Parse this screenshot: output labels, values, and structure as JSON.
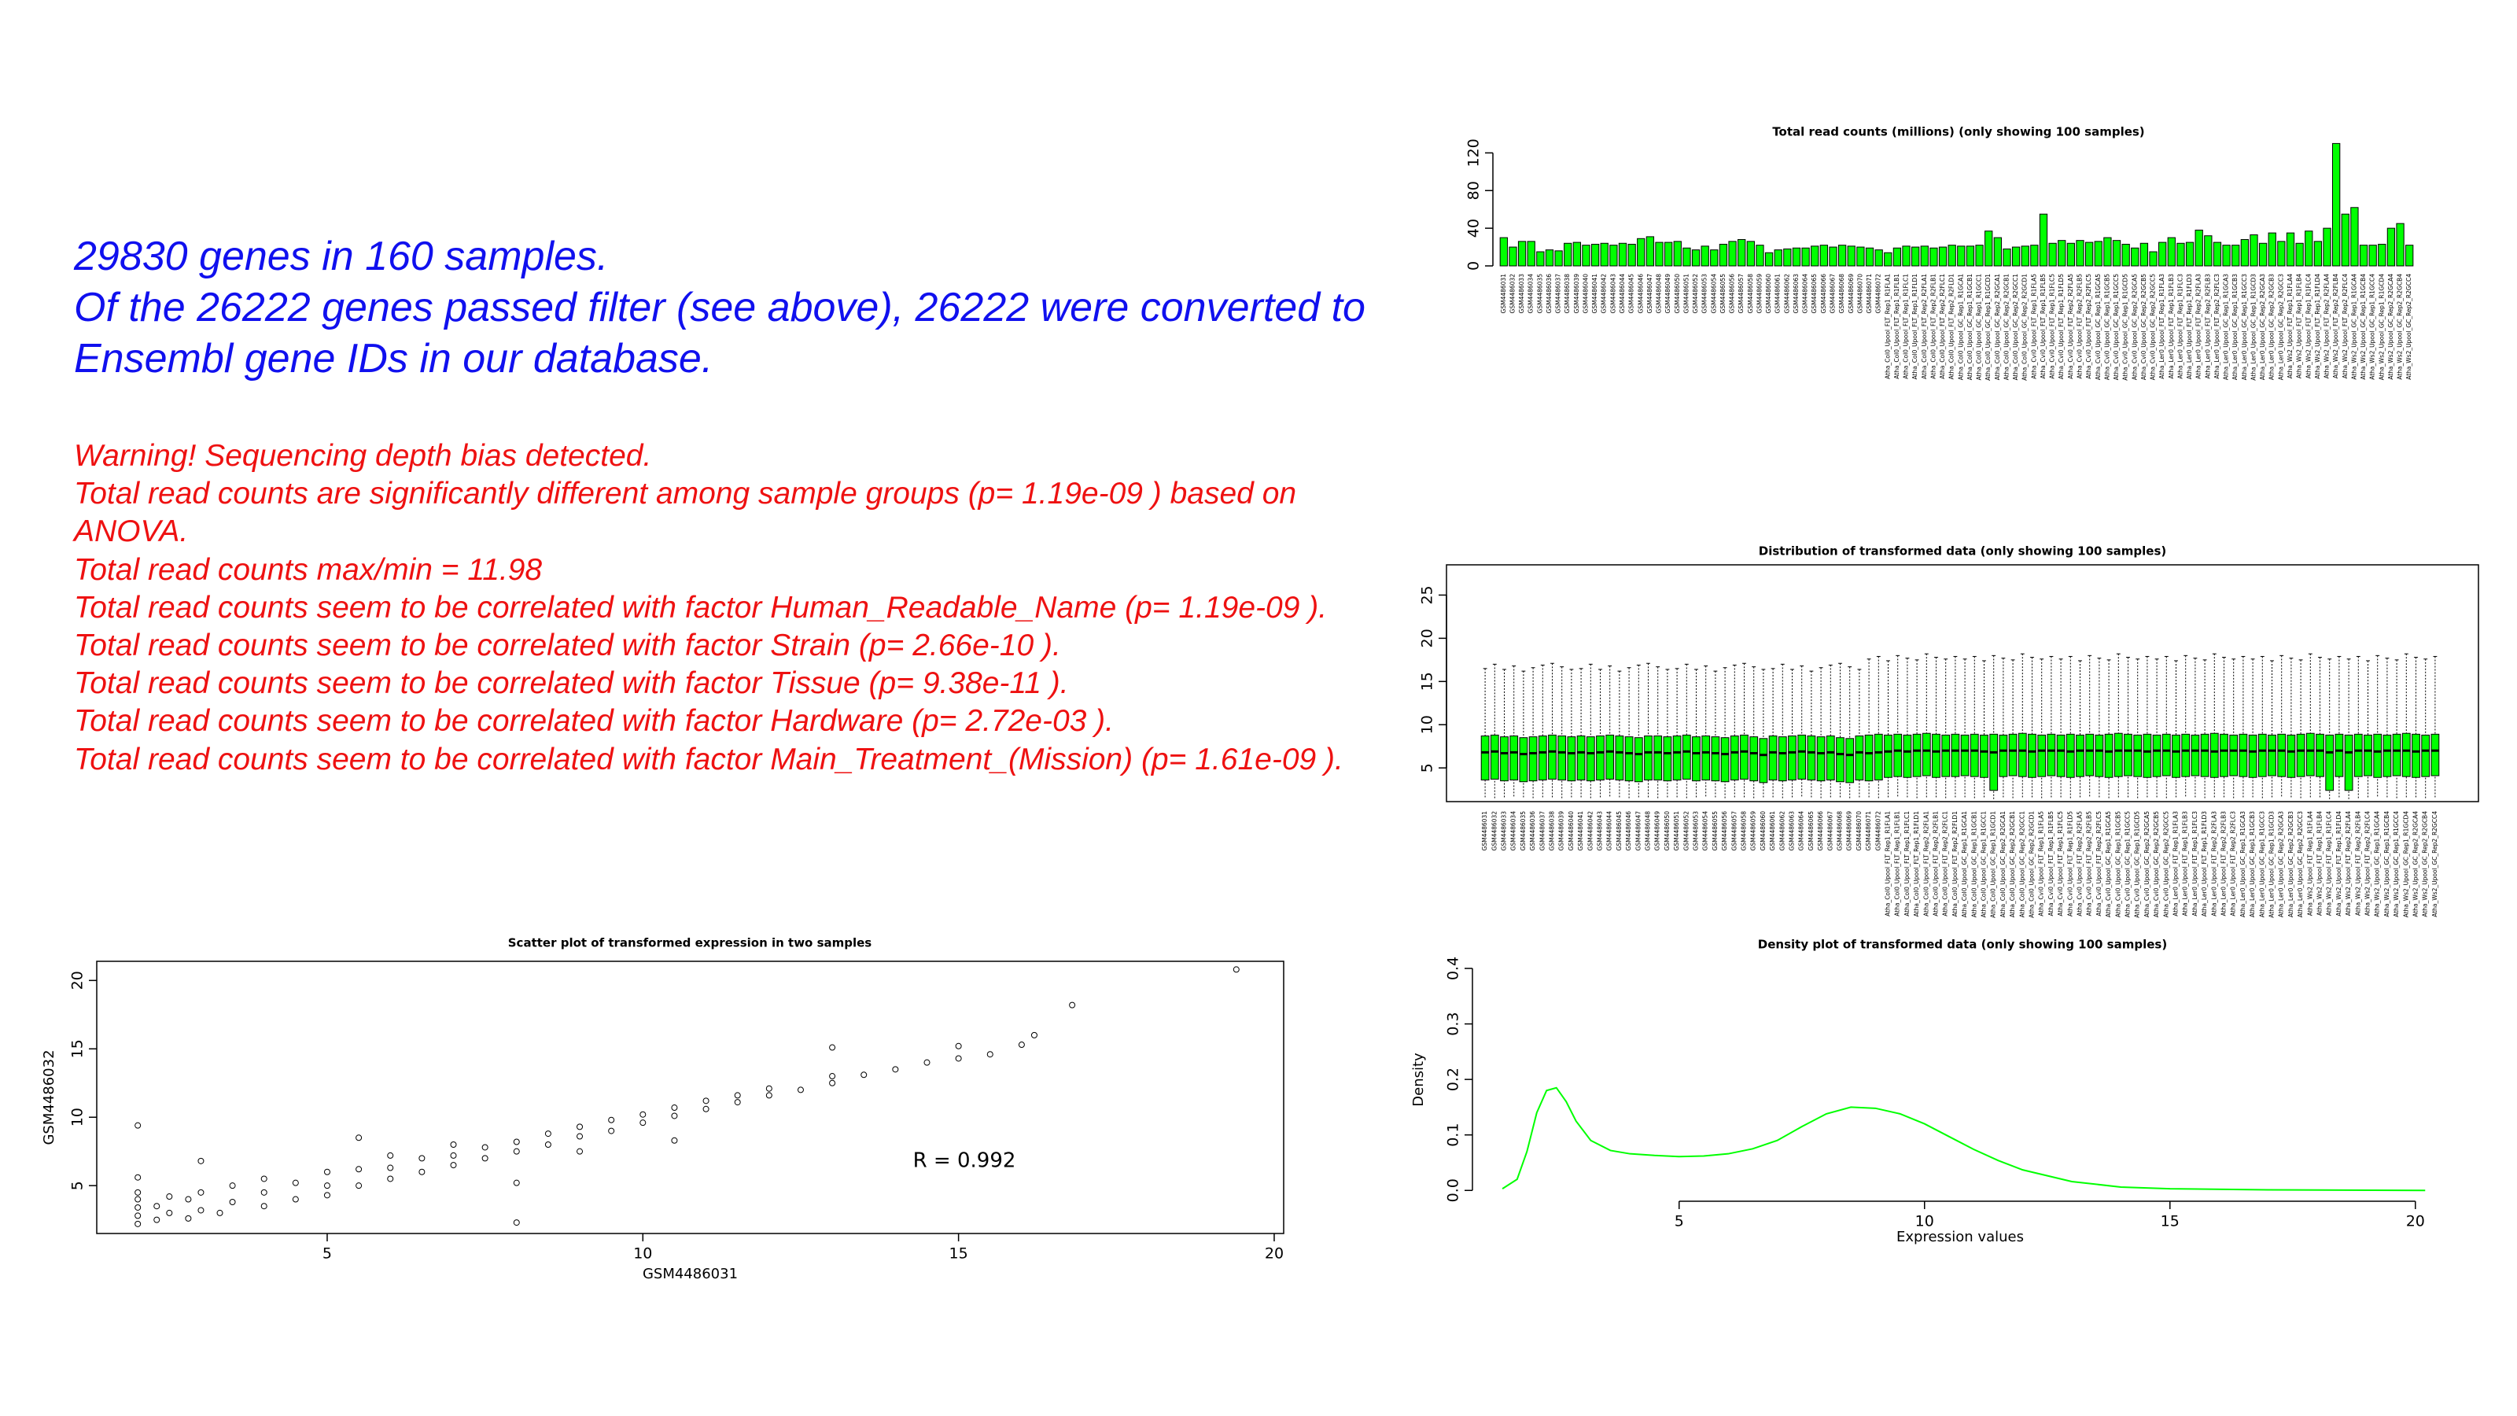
{
  "header": {
    "lines": [
      "29830 genes in 160 samples.",
      "Of the 26222 genes passed filter (see above), 26222 were converted to",
      "Ensembl gene IDs in our database."
    ]
  },
  "warnings": [
    "Warning! Sequencing depth bias detected.",
    "Total read counts are significantly different among sample groups (p= 1.19e-09 ) based on",
    "ANOVA.",
    "Total read counts max/min = 11.98",
    "Total read counts seem to be correlated with factor Human_Readable_Name (p= 1.19e-09 ).",
    "Total read counts seem to be correlated with factor Strain (p= 2.66e-10 ).",
    "Total read counts seem to be correlated with factor Tissue (p= 9.38e-11 ).",
    "Total read counts seem to be correlated with factor Hardware (p= 2.72e-03 ).",
    "Total read counts seem to be correlated with factor Main_Treatment_(Mission) (p= 1.61e-09 )."
  ],
  "chart_data": [
    {
      "type": "bar",
      "title": "Total read counts (millions)  (only showing 100 samples)",
      "color": "#00ff00",
      "categories": [
        "GSM4486031",
        "GSM4486032",
        "GSM4486033",
        "GSM4486034",
        "GSM4486035",
        "GSM4486036",
        "GSM4486037",
        "GSM4486038",
        "GSM4486039",
        "GSM4486040",
        "GSM4486041",
        "GSM4486042",
        "GSM4486043",
        "GSM4486044",
        "GSM4486045",
        "GSM4486046",
        "GSM4486047",
        "GSM4486048",
        "GSM4486049",
        "GSM4486050",
        "GSM4486051",
        "GSM4486052",
        "GSM4486053",
        "GSM4486054",
        "GSM4486055",
        "GSM4486056",
        "GSM4486057",
        "GSM4486058",
        "GSM4486059",
        "GSM4486060",
        "GSM4486061",
        "GSM4486062",
        "GSM4486063",
        "GSM4486064",
        "GSM4486065",
        "GSM4486066",
        "GSM4486067",
        "GSM4486068",
        "GSM4486069",
        "GSM4486070",
        "GSM4486071",
        "GSM4486072",
        "Atha_Col0_Upool_FLT_Rep1_R1FLA1",
        "Atha_Col0_Upool_FLT_Rep1_R1FLB1",
        "Atha_Col0_Upool_FLT_Rep1_R1FLC1",
        "Atha_Col0_Upool_FLT_Rep1_R1FLD1",
        "Atha_Col0_Upool_FLT_Rep2_R2FLA1",
        "Atha_Col0_Upool_FLT_Rep2_R2FLB1",
        "Atha_Col0_Upool_FLT_Rep2_R2FLC1",
        "Atha_Col0_Upool_FLT_Rep2_R2FLD1",
        "Atha_Col0_Upool_GC_Rep1_R1GCA1",
        "Atha_Col0_Upool_GC_Rep1_R1GCB1",
        "Atha_Col0_Upool_GC_Rep1_R1GCC1",
        "Atha_Col0_Upool_GC_Rep1_R1GCD1",
        "Atha_Col0_Upool_GC_Rep2_R2GCA1",
        "Atha_Col0_Upool_GC_Rep2_R2GCB1",
        "Atha_Col0_Upool_GC_Rep2_R2GCC1",
        "Atha_Col0_Upool_GC_Rep2_R2GCD1",
        "Atha_Cvi0_Upool_FLT_Rep1_R1FLA5",
        "Atha_Cvi0_Upool_FLT_Rep1_R1FLB5",
        "Atha_Cvi0_Upool_FLT_Rep1_R1FLC5",
        "Atha_Cvi0_Upool_FLT_Rep1_R1FLD5",
        "Atha_Cvi0_Upool_FLT_Rep2_R2FLA5",
        "Atha_Cvi0_Upool_FLT_Rep2_R2FLB5",
        "Atha_Cvi0_Upool_FLT_Rep2_R2FLC5",
        "Atha_Cvi0_Upool_GC_Rep1_R1GCA5",
        "Atha_Cvi0_Upool_GC_Rep1_R1GCB5",
        "Atha_Cvi0_Upool_GC_Rep1_R1GCC5",
        "Atha_Cvi0_Upool_GC_Rep1_R1GCD5",
        "Atha_Cvi0_Upool_GC_Rep2_R2GCA5",
        "Atha_Cvi0_Upool_GC_Rep2_R2GCB5",
        "Atha_Cvi0_Upool_GC_Rep2_R2GCC5",
        "Atha_Ler0_Upool_FLT_Rep1_R1FLA3",
        "Atha_Ler0_Upool_FLT_Rep1_R1FLB3",
        "Atha_Ler0_Upool_FLT_Rep1_R1FLC3",
        "Atha_Ler0_Upool_FLT_Rep1_R1FLD3",
        "Atha_Ler0_Upool_FLT_Rep2_R2FLA3",
        "Atha_Ler0_Upool_FLT_Rep2_R2FLB3",
        "Atha_Ler0_Upool_FLT_Rep2_R2FLC3",
        "Atha_Ler0_Upool_GC_Rep1_R1GCA3",
        "Atha_Ler0_Upool_GC_Rep1_R1GCB3",
        "Atha_Ler0_Upool_GC_Rep1_R1GCC3",
        "Atha_Ler0_Upool_GC_Rep1_R1GCD3",
        "Atha_Ler0_Upool_GC_Rep2_R2GCA3",
        "Atha_Ler0_Upool_GC_Rep2_R2GCB3",
        "Atha_Ler0_Upool_GC_Rep2_R2GCC3",
        "Atha_Ws2_Upool_FLT_Rep1_R1FLA4",
        "Atha_Ws2_Upool_FLT_Rep1_R1FLB4",
        "Atha_Ws2_Upool_FLT_Rep1_R1FLC4",
        "Atha_Ws2_Upool_FLT_Rep1_R1FLD4",
        "Atha_Ws2_Upool_FLT_Rep2_R2FLA4",
        "Atha_Ws2_Upool_FLT_Rep2_R2FLB4",
        "Atha_Ws2_Upool_FLT_Rep2_R2FLC4",
        "Atha_Ws2_Upool_GC_Rep1_R1GCA4",
        "Atha_Ws2_Upool_GC_Rep1_R1GCB4",
        "Atha_Ws2_Upool_GC_Rep1_R1GCC4",
        "Atha_Ws2_Upool_GC_Rep1_R1GCD4",
        "Atha_Ws2_Upool_GC_Rep2_R2GCA4",
        "Atha_Ws2_Upool_GC_Rep2_R2GCB4",
        "Atha_Ws2_Upool_GC_Rep2_R2GCC4"
      ],
      "values": [
        30,
        20,
        26,
        26,
        15,
        17,
        16,
        24,
        25,
        22,
        23,
        24,
        22,
        24,
        23,
        29,
        31,
        25,
        25,
        26,
        19,
        17,
        21,
        17,
        23,
        26,
        28,
        26,
        22,
        14,
        17,
        18,
        19,
        19,
        21,
        22,
        20,
        22,
        21,
        20,
        19,
        17,
        14,
        19,
        21,
        20,
        21,
        19,
        20,
        22,
        21,
        21,
        22,
        37,
        30,
        18,
        20,
        21,
        22,
        55,
        24,
        27,
        24,
        27,
        25,
        26,
        30,
        27,
        23,
        19,
        24,
        15,
        25,
        30,
        24,
        25,
        38,
        32,
        25,
        22,
        22,
        28,
        33,
        24,
        35,
        26,
        35,
        24,
        37,
        26,
        40,
        130,
        55,
        62,
        22,
        22,
        23,
        40,
        45,
        22
      ],
      "ylim": [
        0,
        132
      ],
      "yticks": [
        0,
        40,
        80,
        120
      ]
    },
    {
      "type": "box",
      "title": "Distribution of transformed data (only showing 100 samples)",
      "color": "#00ff00",
      "whisker_low": [
        1.6,
        1.5,
        1.6,
        1.7,
        1.6,
        1.5,
        1.6,
        1.6,
        1.5,
        1.6,
        1.6,
        1.5,
        1.6,
        1.7,
        1.6,
        1.5,
        1.6,
        1.6,
        1.5,
        1.6,
        1.6,
        1.5,
        1.6,
        1.7,
        1.6,
        1.5,
        1.6,
        1.6,
        1.5,
        1.6,
        1.6,
        1.5,
        1.6,
        1.7,
        1.6,
        1.5,
        1.6,
        1.6,
        1.5,
        1.6,
        1.6,
        1.5,
        1.6,
        1.7,
        1.6,
        1.5,
        1.6,
        1.6,
        1.5,
        1.6,
        1.6,
        1.5,
        1.6,
        1.4,
        1.6,
        1.5,
        1.6,
        1.6,
        1.5,
        1.6,
        1.6,
        1.5,
        1.6,
        1.7,
        1.6,
        1.5,
        1.6,
        1.6,
        1.5,
        1.6,
        1.6,
        1.5,
        1.6,
        1.7,
        1.6,
        1.5,
        1.6,
        1.6,
        1.5,
        1.6,
        1.6,
        1.5,
        1.6,
        1.7,
        1.6,
        1.5,
        1.6,
        1.6,
        1.4,
        1.6,
        1.4,
        1.5,
        1.6,
        1.7,
        1.6,
        1.5,
        1.6,
        1.6,
        1.5,
        1.6
      ],
      "q1": [
        3.6,
        3.7,
        3.5,
        3.6,
        3.4,
        3.5,
        3.6,
        3.7,
        3.6,
        3.5,
        3.6,
        3.5,
        3.6,
        3.7,
        3.6,
        3.5,
        3.4,
        3.6,
        3.6,
        3.5,
        3.6,
        3.7,
        3.5,
        3.6,
        3.5,
        3.4,
        3.6,
        3.7,
        3.5,
        3.3,
        3.6,
        3.5,
        3.6,
        3.7,
        3.6,
        3.5,
        3.6,
        3.4,
        3.3,
        3.6,
        3.5,
        3.6,
        3.9,
        4.0,
        3.9,
        4.0,
        4.1,
        3.9,
        4.0,
        4.0,
        4.1,
        4.0,
        3.9,
        2.4,
        4.0,
        4.1,
        4.0,
        3.9,
        4.0,
        4.1,
        4.0,
        3.9,
        4.0,
        4.1,
        4.0,
        3.9,
        4.0,
        4.1,
        4.0,
        3.9,
        4.0,
        4.1,
        3.9,
        4.0,
        4.1,
        4.0,
        3.9,
        4.0,
        4.1,
        4.0,
        3.9,
        4.0,
        4.1,
        4.0,
        3.9,
        4.0,
        4.1,
        4.0,
        2.4,
        4.0,
        2.4,
        4.0,
        4.1,
        3.9,
        4.0,
        4.1,
        4.0,
        3.9,
        4.0,
        4.1
      ],
      "median": [
        6.8,
        6.9,
        6.7,
        6.8,
        6.6,
        6.7,
        6.8,
        6.9,
        6.8,
        6.7,
        6.8,
        6.7,
        6.8,
        6.9,
        6.8,
        6.7,
        6.6,
        6.8,
        6.8,
        6.7,
        6.8,
        6.9,
        6.7,
        6.8,
        6.7,
        6.6,
        6.8,
        6.9,
        6.7,
        6.5,
        6.8,
        6.7,
        6.8,
        6.9,
        6.8,
        6.7,
        6.8,
        6.6,
        6.5,
        6.8,
        6.7,
        6.8,
        6.9,
        7.0,
        6.9,
        7.0,
        7.0,
        6.9,
        7.0,
        7.0,
        7.0,
        7.0,
        6.9,
        6.8,
        7.0,
        7.0,
        7.0,
        6.9,
        7.0,
        7.0,
        7.0,
        6.9,
        7.0,
        7.0,
        7.0,
        6.9,
        7.0,
        7.0,
        7.0,
        6.9,
        7.0,
        7.0,
        6.9,
        7.0,
        7.0,
        7.0,
        6.9,
        7.0,
        7.0,
        7.0,
        6.9,
        7.0,
        7.0,
        7.0,
        6.9,
        7.0,
        7.0,
        7.0,
        6.8,
        7.0,
        6.8,
        7.0,
        7.0,
        6.9,
        7.0,
        7.0,
        7.0,
        6.9,
        7.0,
        7.0
      ],
      "q3": [
        8.7,
        8.8,
        8.6,
        8.7,
        8.5,
        8.6,
        8.7,
        8.8,
        8.7,
        8.6,
        8.7,
        8.6,
        8.7,
        8.8,
        8.7,
        8.6,
        8.5,
        8.7,
        8.7,
        8.6,
        8.7,
        8.8,
        8.6,
        8.7,
        8.6,
        8.5,
        8.7,
        8.8,
        8.6,
        8.4,
        8.7,
        8.6,
        8.7,
        8.8,
        8.7,
        8.6,
        8.7,
        8.5,
        8.4,
        8.7,
        8.8,
        8.9,
        8.8,
        8.9,
        8.8,
        8.9,
        9.0,
        8.9,
        8.8,
        8.9,
        8.8,
        8.9,
        8.8,
        8.9,
        8.8,
        8.9,
        9.0,
        8.9,
        8.8,
        8.9,
        8.8,
        8.9,
        8.8,
        8.9,
        8.8,
        8.9,
        9.0,
        8.9,
        8.8,
        8.9,
        8.8,
        8.9,
        8.8,
        8.9,
        8.8,
        8.9,
        9.0,
        8.9,
        8.8,
        8.9,
        8.8,
        8.9,
        8.8,
        8.9,
        8.8,
        8.9,
        9.0,
        8.9,
        8.8,
        8.9,
        8.8,
        8.9,
        8.8,
        8.9,
        8.8,
        8.9,
        9.0,
        8.9,
        8.8,
        8.9
      ],
      "whisker_high": [
        16.5,
        17.0,
        16.4,
        16.8,
        16.2,
        16.6,
        16.9,
        17.1,
        16.7,
        16.4,
        16.5,
        17.0,
        16.4,
        16.8,
        16.2,
        16.6,
        16.9,
        17.1,
        16.7,
        16.4,
        16.5,
        17.0,
        16.4,
        16.8,
        16.2,
        16.6,
        16.9,
        17.1,
        16.7,
        16.4,
        16.5,
        17.0,
        16.4,
        16.8,
        16.2,
        16.6,
        16.9,
        17.1,
        16.7,
        16.4,
        17.6,
        17.9,
        17.4,
        18.0,
        17.7,
        17.5,
        18.2,
        17.8,
        17.6,
        17.9,
        17.6,
        17.9,
        17.4,
        18.0,
        17.7,
        17.5,
        18.2,
        17.8,
        17.6,
        17.9,
        17.6,
        17.9,
        17.4,
        18.0,
        17.7,
        17.5,
        18.2,
        17.8,
        17.6,
        17.9,
        17.6,
        17.9,
        17.4,
        18.0,
        17.7,
        17.5,
        18.2,
        17.8,
        17.6,
        17.9,
        17.6,
        17.9,
        17.4,
        18.0,
        17.7,
        17.5,
        18.2,
        17.8,
        17.6,
        17.9,
        17.6,
        17.9,
        17.4,
        18.0,
        17.7,
        17.5,
        18.2,
        17.8,
        17.6,
        17.9
      ],
      "ylim": [
        1.1,
        28.5
      ],
      "yticks": [
        5,
        10,
        15,
        20,
        25
      ]
    },
    {
      "type": "scatter",
      "title": "Scatter plot of transformed expression in two samples",
      "color": "#000000",
      "xlabel": "GSM4486031",
      "ylabel": "GSM4486032",
      "annotation": "R = 0.992",
      "x": [
        2,
        2,
        2,
        2,
        2,
        2,
        2.3,
        2.3,
        2.5,
        2.5,
        2.8,
        2.8,
        3,
        3,
        3.3,
        3.5,
        3.5,
        4,
        4,
        4,
        4.5,
        4.5,
        5,
        5,
        5,
        5.5,
        5.5,
        6,
        6,
        6,
        6.5,
        6.5,
        7,
        7,
        7,
        7.5,
        7.5,
        8,
        8,
        8,
        8.5,
        8.5,
        9,
        9,
        9,
        9.5,
        9.5,
        10,
        10,
        10.5,
        10.5,
        11,
        11,
        11.5,
        11.5,
        12,
        12,
        12.5,
        13,
        13,
        13.5,
        14,
        14.5,
        15,
        15,
        15.5,
        16,
        16.2,
        16.8,
        19.4,
        13,
        10.5,
        8,
        5.5,
        3,
        2
      ],
      "y": [
        2.2,
        2.8,
        3.4,
        4.0,
        4.5,
        9.4,
        2.5,
        3.5,
        3.0,
        4.2,
        2.6,
        4.0,
        3.2,
        4.5,
        3.0,
        3.8,
        5.0,
        3.5,
        4.5,
        5.5,
        4.0,
        5.2,
        4.3,
        5.0,
        6.0,
        5.0,
        6.2,
        5.5,
        6.3,
        7.2,
        6.0,
        7.0,
        6.5,
        7.2,
        8.0,
        7.0,
        7.8,
        7.5,
        8.2,
        2.3,
        8.0,
        8.8,
        8.6,
        9.3,
        7.5,
        9.0,
        9.8,
        9.6,
        10.2,
        10.1,
        10.7,
        10.6,
        11.2,
        11.1,
        11.6,
        11.6,
        12.1,
        12.0,
        12.5,
        13.0,
        13.1,
        13.5,
        14.0,
        14.3,
        15.2,
        14.6,
        15.3,
        16.0,
        18.2,
        20.8,
        15.1,
        8.3,
        5.2,
        8.5,
        6.8,
        5.6
      ],
      "xlim": [
        1.35,
        20.15
      ],
      "ylim": [
        1.5,
        21.4
      ],
      "xticks": [
        5,
        10,
        15,
        20
      ],
      "yticks": [
        5,
        10,
        15,
        20
      ]
    },
    {
      "type": "line",
      "title": "Density plot of transformed data (only showing 100 samples)",
      "color": "#00ff00",
      "xlabel": "Expression values",
      "ylabel": "Density",
      "x": [
        1.4,
        1.7,
        1.9,
        2.1,
        2.3,
        2.5,
        2.7,
        2.9,
        3.2,
        3.6,
        4.0,
        4.5,
        5.0,
        5.5,
        6.0,
        6.5,
        7.0,
        7.5,
        8.0,
        8.5,
        9.0,
        9.5,
        10.0,
        10.5,
        11.0,
        11.5,
        12.0,
        13.0,
        14.0,
        15.0,
        17.0,
        20.2
      ],
      "values": [
        0.003,
        0.02,
        0.07,
        0.14,
        0.18,
        0.185,
        0.16,
        0.125,
        0.09,
        0.072,
        0.066,
        0.063,
        0.061,
        0.062,
        0.066,
        0.075,
        0.09,
        0.115,
        0.138,
        0.15,
        0.148,
        0.138,
        0.12,
        0.097,
        0.074,
        0.054,
        0.037,
        0.016,
        0.006,
        0.003,
        0.001,
        0
      ],
      "xlim": [
        0.95,
        20.5
      ],
      "ylim": [
        -0.011,
        0.41
      ],
      "xticks": [
        5,
        10,
        15,
        20
      ],
      "yticks": [
        {
          "value": 0,
          "label": "0.0"
        },
        {
          "value": 0.1,
          "label": "0.1"
        },
        {
          "value": 0.2,
          "label": "0.2"
        },
        {
          "value": 0.3,
          "label": "0.3"
        },
        {
          "value": 0.4,
          "label": "0.4"
        }
      ]
    }
  ]
}
